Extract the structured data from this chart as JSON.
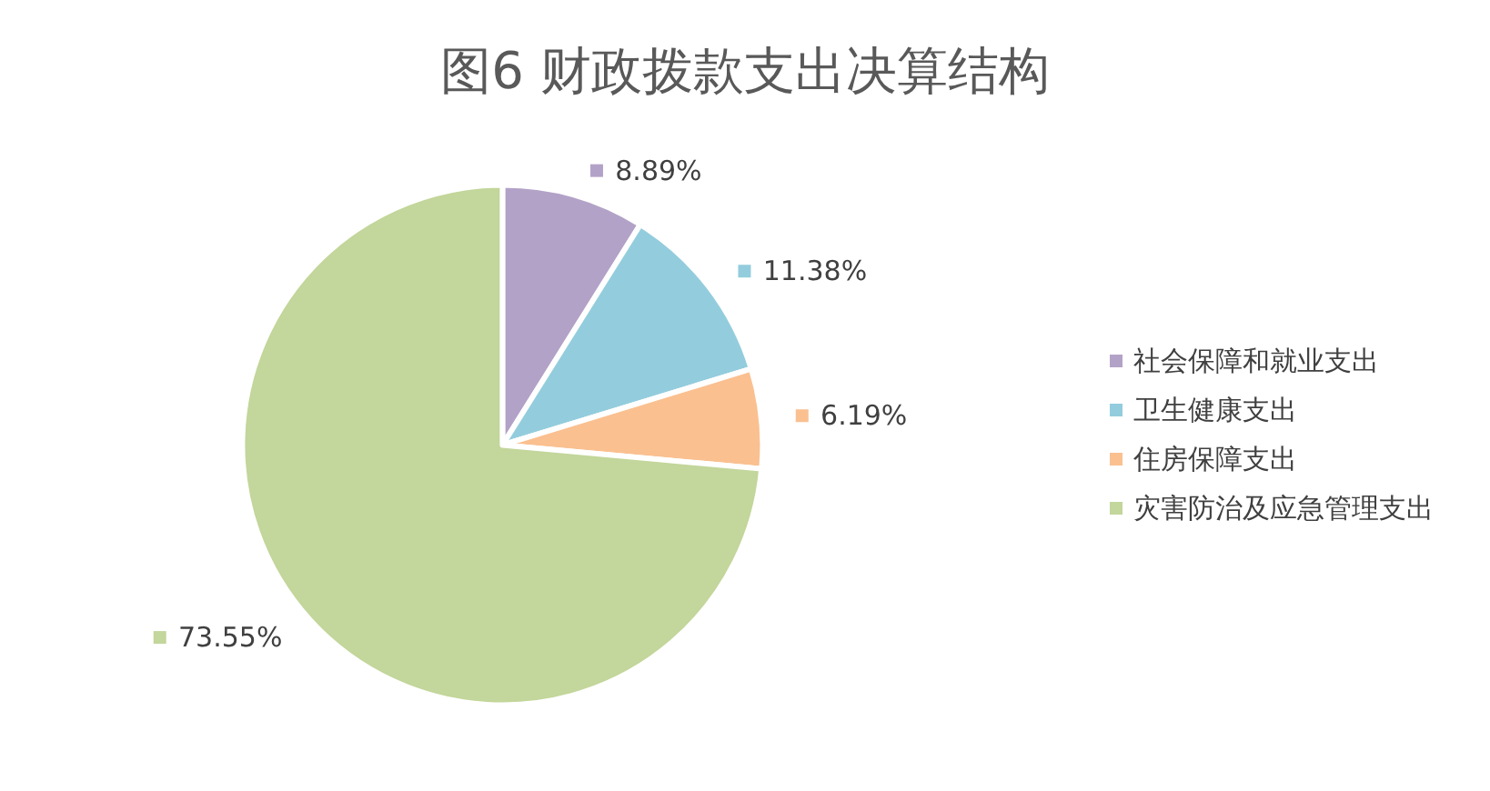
{
  "chart_data": {
    "type": "pie",
    "title": "图6 财政拨款支出决算结构",
    "categories": [
      "社会保障和就业支出",
      "卫生健康支出",
      "住房保障支出",
      "灾害防治及应急管理支出"
    ],
    "values": [
      8.89,
      11.38,
      6.19,
      73.55
    ],
    "value_labels": [
      "8.89%",
      "11.38%",
      "6.19%",
      "73.55%"
    ],
    "colors": [
      "#b3a2c7",
      "#93cddd",
      "#fac090",
      "#c3d69b"
    ],
    "legend": "right"
  }
}
